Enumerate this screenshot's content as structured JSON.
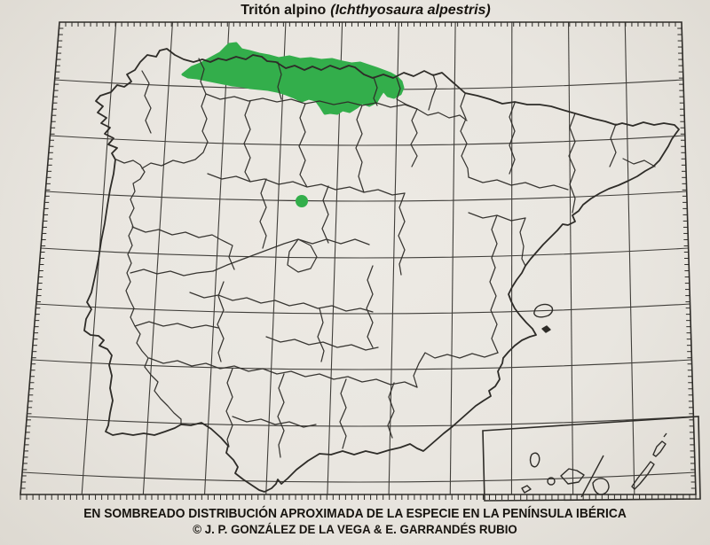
{
  "title": {
    "common_name": "Tritón alpino",
    "scientific_name_paren": "(Ichthyosaura alpestris)"
  },
  "footer": {
    "line1": "EN SOMBREADO DISTRIBUCIÓN APROXIMADA DE LA ESPECIE EN LA PENÍNSULA IBÉRICA",
    "line2": "© J. P. GONZÁLEZ DE LA VEGA & E. GARRANDÉS RUBIO"
  },
  "colors": {
    "distribution_green": "#33ae4b",
    "paper": "#e9e6e0",
    "ink": "#2e2c28"
  },
  "map": {
    "shading_meaning": "distribución aproximada de la especie",
    "area_label": "Península Ibérica",
    "shaded_area_note": "franja norte cantábrica y un punto aislado interior",
    "inset_note": "islas del archipiélago canario"
  }
}
